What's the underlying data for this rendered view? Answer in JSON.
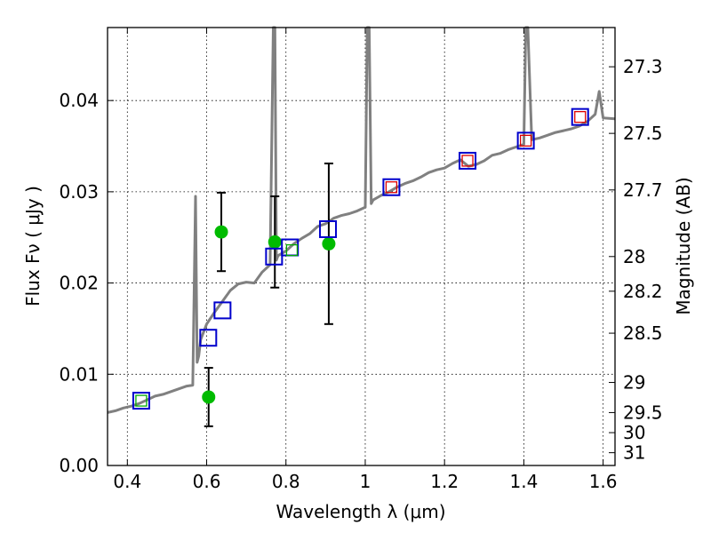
{
  "chart_data": {
    "type": "scatter",
    "title": "",
    "xlabel": "Wavelength  λ (μm)",
    "ylabel": "Flux  Fν  ( μJy )",
    "ylabel_right": "Magnitude (AB)",
    "xlim": [
      0.35,
      1.63
    ],
    "ylim": [
      0.0,
      0.048
    ],
    "grid": true,
    "x_ticks": [
      0.4,
      0.6,
      0.8,
      1.0,
      1.2,
      1.4,
      1.6
    ],
    "x_tick_labels": [
      "0.4",
      "0.6",
      "0.8",
      "1",
      "1.2",
      "1.4",
      "1.6"
    ],
    "y_ticks": [
      0.0,
      0.01,
      0.02,
      0.03,
      0.04
    ],
    "y_tick_labels": [
      "0.00",
      "0.01",
      "0.02",
      "0.03",
      "0.04"
    ],
    "mag_ticks": [
      {
        "label": "27.3",
        "flux": 0.0437
      },
      {
        "label": "27.5",
        "flux": 0.0364
      },
      {
        "label": "27.7",
        "flux": 0.0302
      },
      {
        "label": "28",
        "flux": 0.0229
      },
      {
        "label": "28.2",
        "flux": 0.0191
      },
      {
        "label": "28.5",
        "flux": 0.0145
      },
      {
        "label": "29",
        "flux": 0.0091
      },
      {
        "label": "29.5",
        "flux": 0.0058
      },
      {
        "label": "30",
        "flux": 0.0036
      },
      {
        "label": "31",
        "flux": 0.0014
      }
    ],
    "series": [
      {
        "kind": "line",
        "color": "#808080",
        "x": [
          0.35,
          0.37,
          0.39,
          0.41,
          0.43,
          0.45,
          0.47,
          0.49,
          0.51,
          0.53,
          0.55,
          0.565,
          0.572,
          0.576,
          0.58,
          0.585,
          0.6,
          0.62,
          0.64,
          0.66,
          0.68,
          0.7,
          0.72,
          0.74,
          0.76,
          0.768,
          0.772,
          0.776,
          0.78,
          0.8,
          0.82,
          0.84,
          0.86,
          0.88,
          0.9,
          0.92,
          0.94,
          0.96,
          0.98,
          1.0,
          1.005,
          1.01,
          1.015,
          1.02,
          1.04,
          1.06,
          1.08,
          1.1,
          1.12,
          1.14,
          1.16,
          1.18,
          1.2,
          1.22,
          1.24,
          1.26,
          1.28,
          1.3,
          1.32,
          1.34,
          1.36,
          1.38,
          1.4,
          1.405,
          1.41,
          1.42,
          1.44,
          1.46,
          1.48,
          1.5,
          1.52,
          1.54,
          1.56,
          1.58,
          1.59,
          1.6,
          1.63
        ],
        "y": [
          0.0058,
          0.006,
          0.0063,
          0.0065,
          0.0068,
          0.0072,
          0.0076,
          0.0078,
          0.0081,
          0.0084,
          0.0087,
          0.0088,
          0.0295,
          0.0113,
          0.012,
          0.0138,
          0.0155,
          0.0168,
          0.018,
          0.0192,
          0.0199,
          0.0201,
          0.02,
          0.0212,
          0.022,
          0.048,
          0.048,
          0.0225,
          0.023,
          0.0235,
          0.0243,
          0.0249,
          0.0254,
          0.0262,
          0.0265,
          0.0271,
          0.0274,
          0.0276,
          0.0279,
          0.0283,
          0.048,
          0.048,
          0.0287,
          0.0291,
          0.0296,
          0.03,
          0.0305,
          0.0309,
          0.0312,
          0.0316,
          0.0321,
          0.0324,
          0.0326,
          0.0331,
          0.0335,
          0.0328,
          0.033,
          0.0334,
          0.034,
          0.0342,
          0.0346,
          0.0349,
          0.0352,
          0.048,
          0.048,
          0.0357,
          0.0359,
          0.0362,
          0.0365,
          0.0367,
          0.0369,
          0.0372,
          0.0377,
          0.0385,
          0.041,
          0.0381,
          0.038
        ]
      },
      {
        "kind": "points",
        "marker": "circle",
        "color": "#00bb00",
        "x": [
          0.605,
          0.637,
          0.772,
          0.908
        ],
        "y": [
          0.0075,
          0.0256,
          0.0245,
          0.0243
        ],
        "yerr_low": [
          0.0032,
          0.0043,
          0.005,
          0.0088
        ],
        "yerr_high": [
          0.0032,
          0.0043,
          0.005,
          0.0088
        ]
      },
      {
        "kind": "points",
        "marker": "square-open",
        "color": "#0000cc",
        "x": [
          0.435,
          0.604,
          0.64,
          0.77,
          0.81,
          0.906,
          1.066,
          1.258,
          1.405,
          1.542
        ],
        "y": [
          0.0071,
          0.014,
          0.017,
          0.0229,
          0.0239,
          0.0259,
          0.0305,
          0.0334,
          0.0356,
          0.0382
        ]
      },
      {
        "kind": "points",
        "marker": "square-open-small",
        "color": "#00aa00",
        "x": [
          0.435,
          0.815
        ],
        "y": [
          0.0071,
          0.0236
        ]
      },
      {
        "kind": "points",
        "marker": "square-open-small",
        "color": "#dd0000",
        "x": [
          1.066,
          1.258,
          1.405,
          1.542
        ],
        "y": [
          0.0305,
          0.0334,
          0.0356,
          0.0382
        ]
      }
    ]
  }
}
